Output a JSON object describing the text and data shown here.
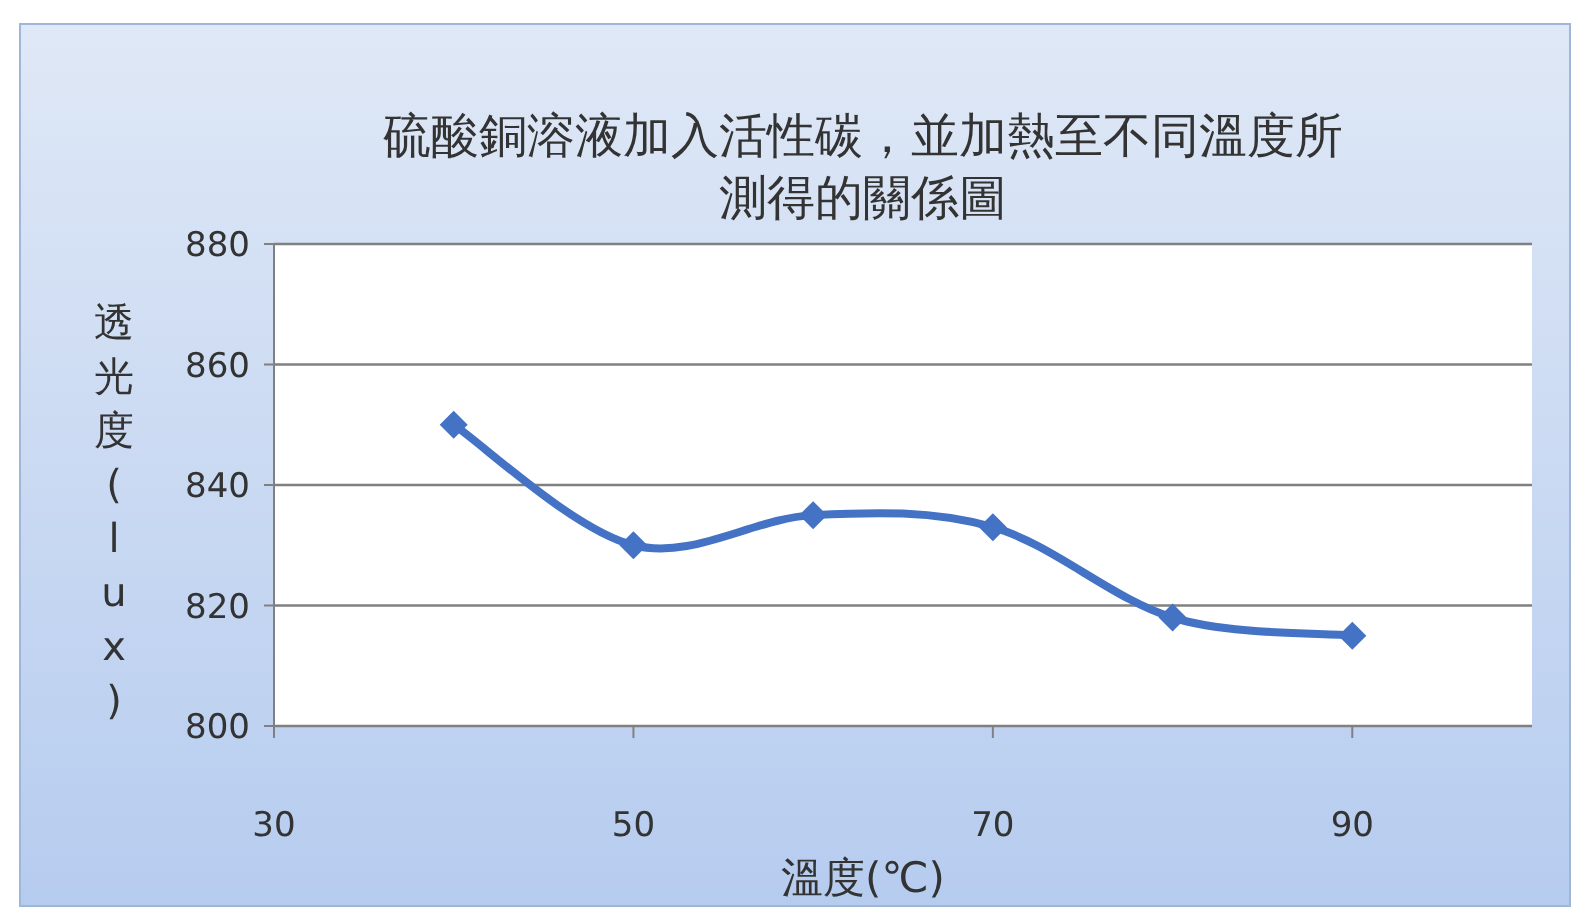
{
  "chart_data": {
    "type": "line",
    "title": "硫酸銅溶液加入活性碳，並加熱至不同溫度所測得的關係圖",
    "xlabel": "溫度(℃)",
    "ylabel": "透光度(lux)",
    "x": [
      40,
      50,
      60,
      70,
      80,
      90
    ],
    "series": [
      {
        "color": "#4472c4",
        "values": [
          850,
          830,
          835,
          833,
          818,
          815
        ]
      }
    ],
    "xlim": [
      30,
      100
    ],
    "xticks": [
      30,
      50,
      70,
      90
    ],
    "ylim": [
      800,
      880
    ],
    "yticks": [
      800,
      820,
      840,
      860,
      880
    ],
    "grid": "y",
    "marker": "diamond",
    "line_style": "solid"
  }
}
